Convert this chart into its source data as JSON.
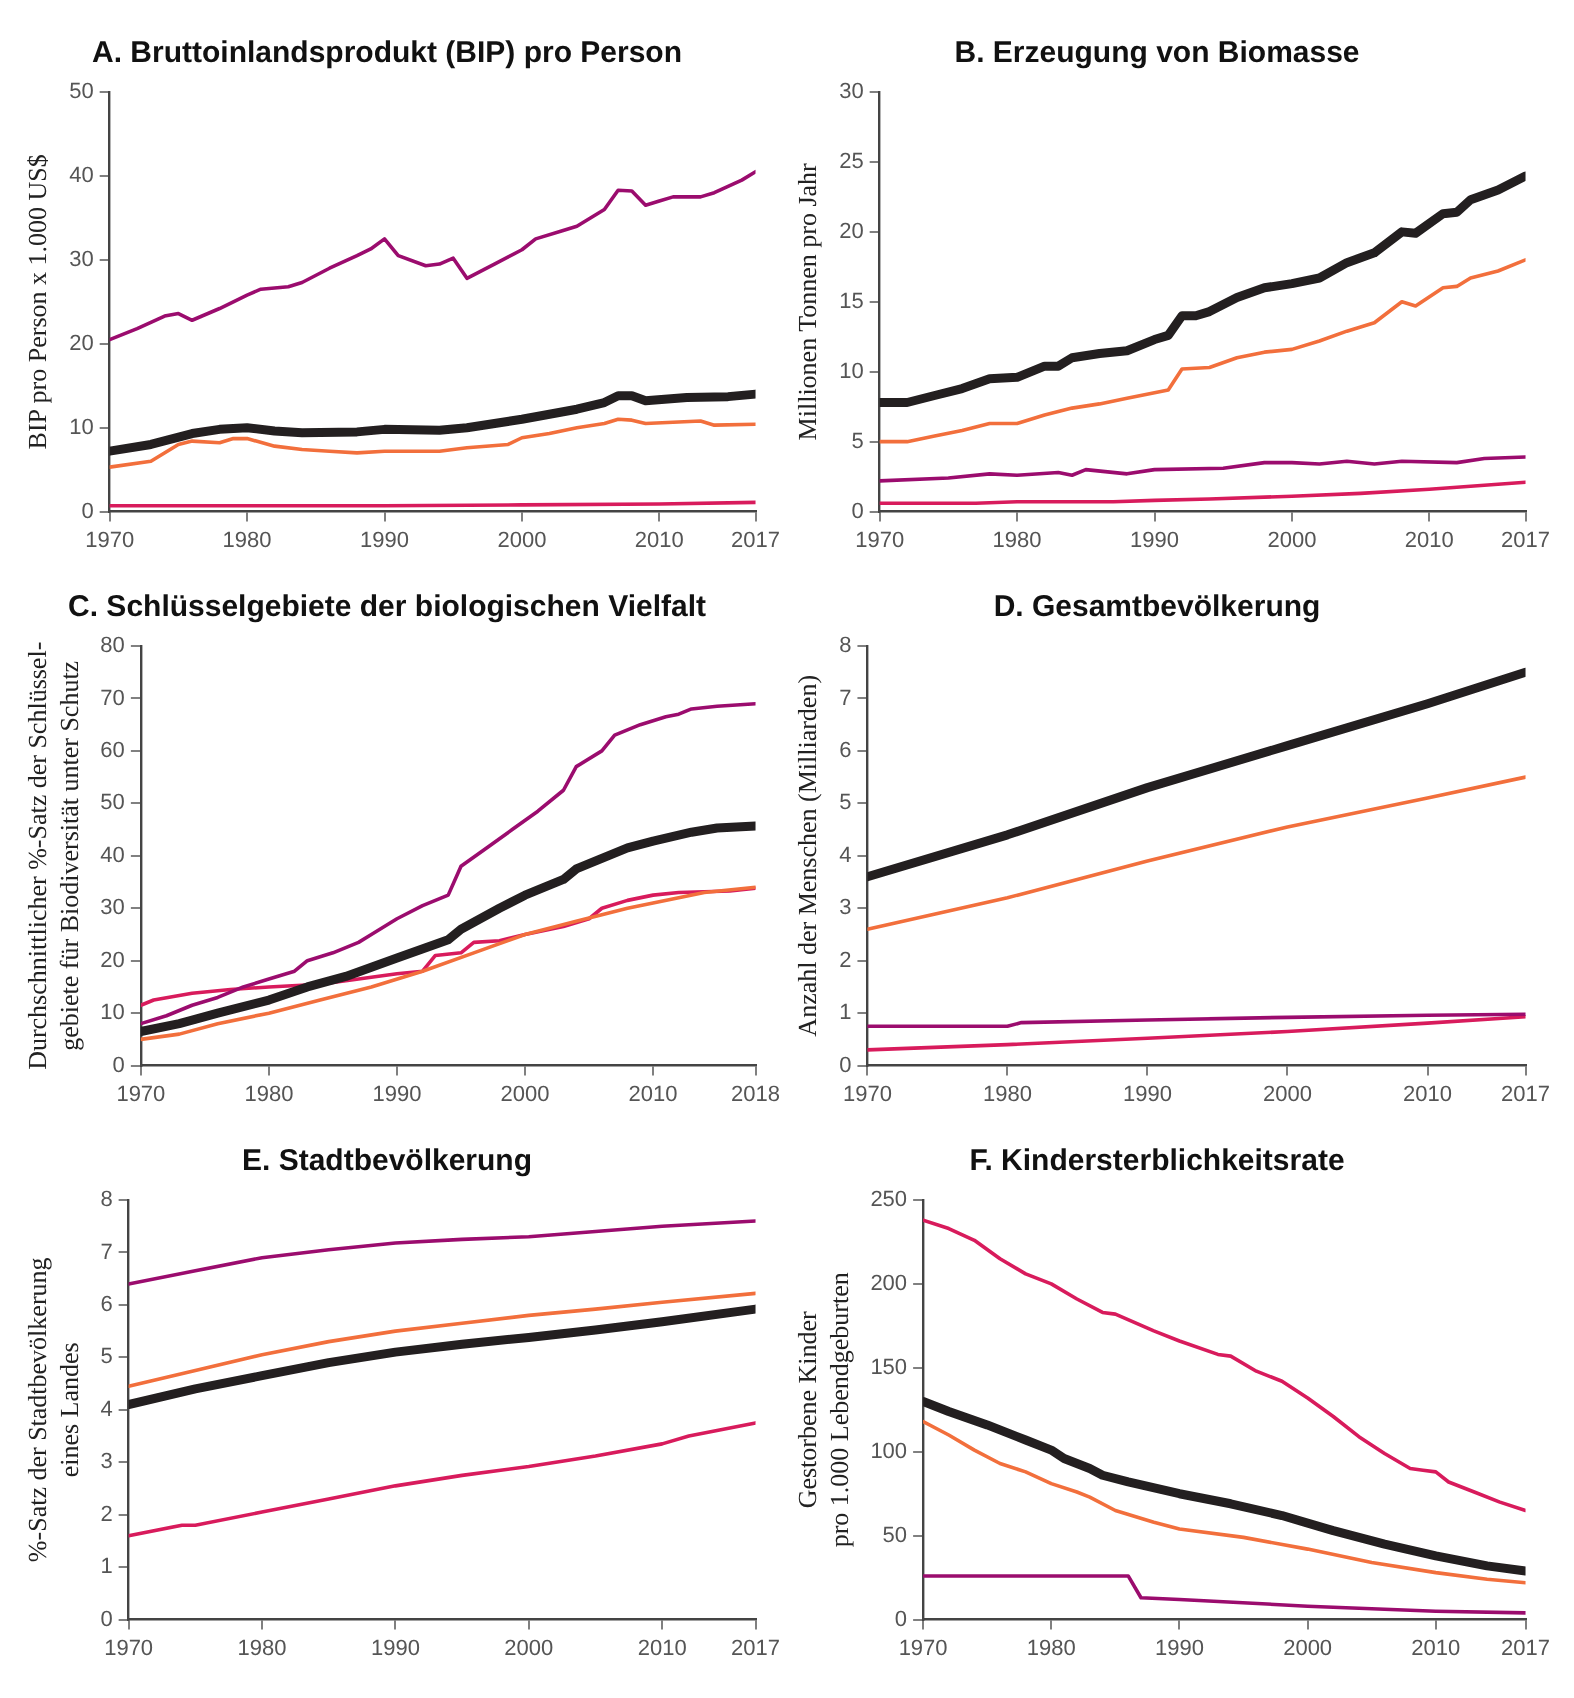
{
  "chart_data": [
    {
      "type": "line",
      "title": "A. Bruttoinlandsprodukt (BIP) pro Person",
      "ylabel": "BIP pro Person x 1.000 US$",
      "xlim": [
        1970,
        2017
      ],
      "xticks": [
        1970,
        1980,
        1990,
        2000,
        2010,
        2017
      ],
      "ylim": [
        0,
        50
      ],
      "yticks": [
        0,
        10,
        20,
        30,
        40,
        50
      ],
      "grid": false,
      "legend": false,
      "marker": "none",
      "line_style": "solid",
      "series": [
        {
          "color": "#231f20",
          "x": [
            1970,
            1973,
            1976,
            1978,
            1980,
            1982,
            1984,
            1988,
            1990,
            1994,
            1996,
            2000,
            2002,
            2004,
            2006,
            2007,
            2008,
            2009,
            2012,
            2015,
            2017
          ],
          "values": [
            7.2,
            8,
            9.3,
            9.8,
            10,
            9.6,
            9.4,
            9.5,
            9.8,
            9.7,
            10,
            11,
            11.6,
            12.2,
            13,
            13.8,
            13.8,
            13.2,
            13.6,
            13.7,
            14
          ]
        },
        {
          "color": "#f26f3c",
          "x": [
            1970,
            1973,
            1975,
            1976,
            1978,
            1979,
            1980,
            1982,
            1984,
            1986,
            1988,
            1990,
            1994,
            1996,
            1999,
            2000,
            2002,
            2004,
            2006,
            2007,
            2008,
            2009,
            2013,
            2014,
            2017
          ],
          "values": [
            5.3,
            6,
            8,
            8.4,
            8.2,
            8.7,
            8.7,
            7.8,
            7.4,
            7.2,
            7,
            7.2,
            7.2,
            7.6,
            8,
            8.8,
            9.3,
            10,
            10.5,
            11,
            10.9,
            10.5,
            10.8,
            10.3,
            10.4
          ]
        },
        {
          "color": "#9b0c6e",
          "x": [
            1970,
            1972,
            1974,
            1975,
            1976,
            1978,
            1980,
            1981,
            1983,
            1984,
            1986,
            1988,
            1989,
            1990,
            1991,
            1993,
            1994,
            1995,
            1996,
            1998,
            2000,
            2001,
            2003,
            2004,
            2006,
            2007,
            2008,
            2009,
            2010,
            2011,
            2013,
            2014,
            2016,
            2017
          ],
          "values": [
            20.5,
            21.8,
            23.3,
            23.6,
            22.8,
            24.2,
            25.8,
            26.5,
            26.8,
            27.3,
            29,
            30.5,
            31.3,
            32.5,
            30.5,
            29.3,
            29.5,
            30.2,
            27.8,
            29.5,
            31.2,
            32.5,
            33.5,
            34,
            36,
            38.3,
            38.2,
            36.5,
            37,
            37.5,
            37.5,
            38,
            39.5,
            40.5
          ]
        },
        {
          "color": "#d81b5c",
          "x": [
            1970,
            1980,
            1990,
            2000,
            2010,
            2017
          ],
          "values": [
            0.7,
            0.7,
            0.7,
            0.8,
            0.9,
            1.1
          ]
        }
      ]
    },
    {
      "type": "line",
      "title": "B. Erzeugung von Biomasse",
      "ylabel": "Millionen Tonnen pro Jahr",
      "xlim": [
        1970,
        2017
      ],
      "xticks": [
        1970,
        1980,
        1990,
        2000,
        2010,
        2017
      ],
      "ylim": [
        0,
        30
      ],
      "yticks": [
        0,
        5,
        10,
        15,
        20,
        25,
        30
      ],
      "grid": false,
      "legend": false,
      "marker": "none",
      "line_style": "solid",
      "series": [
        {
          "color": "#231f20",
          "x": [
            1970,
            1972,
            1974,
            1976,
            1978,
            1980,
            1982,
            1983,
            1984,
            1986,
            1988,
            1990,
            1991,
            1992,
            1993,
            1994,
            1996,
            1998,
            2000,
            2002,
            2004,
            2006,
            2008,
            2009,
            2011,
            2012,
            2013,
            2015,
            2017
          ],
          "values": [
            7.8,
            7.8,
            8.3,
            8.8,
            9.5,
            9.6,
            10.4,
            10.4,
            11,
            11.3,
            11.5,
            12.3,
            12.6,
            14,
            14,
            14.3,
            15.3,
            16,
            16.3,
            16.7,
            17.8,
            18.5,
            20,
            19.9,
            21.3,
            21.4,
            22.3,
            23,
            24
          ]
        },
        {
          "color": "#f26f3c",
          "x": [
            1970,
            1972,
            1974,
            1976,
            1978,
            1980,
            1982,
            1984,
            1986,
            1988,
            1990,
            1991,
            1992,
            1994,
            1996,
            1998,
            2000,
            2002,
            2004,
            2006,
            2008,
            2009,
            2011,
            2012,
            2013,
            2015,
            2017
          ],
          "values": [
            5,
            5,
            5.4,
            5.8,
            6.3,
            6.3,
            6.9,
            7.4,
            7.7,
            8.1,
            8.5,
            8.7,
            10.2,
            10.3,
            11,
            11.4,
            11.6,
            12.2,
            12.9,
            13.5,
            15,
            14.7,
            16,
            16.1,
            16.7,
            17.2,
            18
          ]
        },
        {
          "color": "#9b0c6e",
          "x": [
            1970,
            1975,
            1978,
            1980,
            1983,
            1984,
            1985,
            1988,
            1990,
            1995,
            1998,
            2000,
            2002,
            2004,
            2006,
            2008,
            2012,
            2014,
            2017
          ],
          "values": [
            2.2,
            2.4,
            2.7,
            2.6,
            2.8,
            2.6,
            3,
            2.7,
            3,
            3.1,
            3.5,
            3.5,
            3.4,
            3.6,
            3.4,
            3.6,
            3.5,
            3.8,
            3.9
          ]
        },
        {
          "color": "#d81b5c",
          "x": [
            1970,
            1977,
            1980,
            1987,
            1990,
            1994,
            2000,
            2005,
            2010,
            2017
          ],
          "values": [
            0.6,
            0.6,
            0.7,
            0.7,
            0.8,
            0.9,
            1.1,
            1.3,
            1.6,
            2.1
          ]
        }
      ]
    },
    {
      "type": "line",
      "title": "C. Schlüsselgebiete der biologischen Vielfalt",
      "ylabel": "Durchschnittlicher %-Satz der Schlüssel-\ngebiete für Biodiversität unter Schutz",
      "xlim": [
        1970,
        2018
      ],
      "xticks": [
        1970,
        1980,
        1990,
        2000,
        2010,
        2018
      ],
      "ylim": [
        0,
        80
      ],
      "yticks": [
        0,
        10,
        20,
        30,
        40,
        50,
        60,
        70,
        80
      ],
      "grid": false,
      "legend": false,
      "marker": "none",
      "line_style": "solid",
      "series": [
        {
          "color": "#231f20",
          "x": [
            1970,
            1973,
            1976,
            1980,
            1983,
            1986,
            1990,
            1994,
            1995,
            1998,
            2000,
            2003,
            2004,
            2006,
            2008,
            2010,
            2013,
            2015,
            2018
          ],
          "values": [
            6.5,
            8,
            10,
            12.5,
            15,
            17,
            20.5,
            24,
            26,
            30,
            32.5,
            35.5,
            37.5,
            39.5,
            41.5,
            42.8,
            44.5,
            45.3,
            45.7
          ]
        },
        {
          "color": "#f26f3c",
          "x": [
            1970,
            1973,
            1976,
            1980,
            1984,
            1988,
            1992,
            1996,
            2000,
            2004,
            2008,
            2010,
            2014,
            2018
          ],
          "values": [
            5,
            6,
            8,
            10,
            12.5,
            15,
            18,
            21.5,
            25,
            27.5,
            30,
            31,
            33,
            34
          ]
        },
        {
          "color": "#9b0c6e",
          "x": [
            1970,
            1972,
            1974,
            1976,
            1978,
            1980,
            1982,
            1983,
            1985,
            1987,
            1988,
            1990,
            1992,
            1994,
            1995,
            1997,
            1999,
            2001,
            2003,
            2004,
            2006,
            2007,
            2009,
            2011,
            2012,
            2013,
            2015,
            2018
          ],
          "values": [
            8,
            9.5,
            11.5,
            13,
            15,
            16.5,
            18,
            20,
            21.5,
            23.5,
            25,
            28,
            30.5,
            32.5,
            38,
            41.5,
            45,
            48.5,
            52.5,
            57,
            60,
            63,
            65,
            66.5,
            67,
            68,
            68.5,
            69
          ]
        },
        {
          "color": "#d81b5c",
          "x": [
            1970,
            1971,
            1974,
            1977,
            1980,
            1984,
            1987,
            1990,
            1992,
            1993,
            1995,
            1996,
            1998,
            2000,
            2003,
            2005,
            2006,
            2008,
            2010,
            2012,
            2016,
            2018
          ],
          "values": [
            11.5,
            12.5,
            13.8,
            14.5,
            15,
            15.5,
            16.5,
            17.5,
            18,
            21,
            21.5,
            23.5,
            23.8,
            25,
            26.5,
            28,
            30,
            31.5,
            32.5,
            33,
            33.3,
            33.8
          ]
        }
      ]
    },
    {
      "type": "line",
      "title": "D. Gesamtbevölkerung",
      "ylabel": "Anzahl der Menschen (Milliarden)",
      "xlim": [
        1970,
        2017
      ],
      "xticks": [
        1970,
        1980,
        1990,
        2000,
        2010,
        2017
      ],
      "ylim": [
        0,
        8
      ],
      "yticks": [
        0,
        1,
        2,
        3,
        4,
        5,
        6,
        7,
        8
      ],
      "grid": false,
      "legend": false,
      "marker": "none",
      "line_style": "solid",
      "series": [
        {
          "color": "#231f20",
          "x": [
            1970,
            1980,
            1990,
            2000,
            2010,
            2017
          ],
          "values": [
            3.6,
            4.4,
            5.3,
            6.1,
            6.9,
            7.5
          ]
        },
        {
          "color": "#f26f3c",
          "x": [
            1970,
            1980,
            1990,
            2000,
            2010,
            2017
          ],
          "values": [
            2.6,
            3.2,
            3.9,
            4.55,
            5.1,
            5.5
          ]
        },
        {
          "color": "#9b0c6e",
          "x": [
            1970,
            1980,
            1981,
            1990,
            2000,
            2010,
            2017
          ],
          "values": [
            0.75,
            0.75,
            0.82,
            0.87,
            0.92,
            0.96,
            0.98
          ]
        },
        {
          "color": "#d81b5c",
          "x": [
            1970,
            1980,
            1990,
            2000,
            2010,
            2017
          ],
          "values": [
            0.3,
            0.4,
            0.52,
            0.65,
            0.81,
            0.93
          ]
        }
      ]
    },
    {
      "type": "line",
      "title": "E. Stadtbevölkerung",
      "ylabel": "%-Satz der Stadtbevölkerung\neines Landes",
      "xlim": [
        1970,
        2017
      ],
      "xticks": [
        1970,
        1980,
        1990,
        2000,
        2010,
        2017
      ],
      "ylim": [
        0,
        8
      ],
      "yticks": [
        0,
        1,
        2,
        3,
        4,
        5,
        6,
        7,
        8
      ],
      "grid": false,
      "legend": false,
      "marker": "none",
      "line_style": "solid",
      "series": [
        {
          "color": "#231f20",
          "x": [
            1970,
            1975,
            1980,
            1985,
            1990,
            1995,
            2000,
            2005,
            2010,
            2017
          ],
          "values": [
            4.1,
            4.4,
            4.65,
            4.9,
            5.1,
            5.25,
            5.38,
            5.52,
            5.68,
            5.92
          ]
        },
        {
          "color": "#f26f3c",
          "x": [
            1970,
            1975,
            1980,
            1985,
            1990,
            1995,
            2000,
            2005,
            2010,
            2017
          ],
          "values": [
            4.45,
            4.75,
            5.05,
            5.3,
            5.5,
            5.65,
            5.8,
            5.92,
            6.05,
            6.22
          ]
        },
        {
          "color": "#9b0c6e",
          "x": [
            1970,
            1975,
            1980,
            1985,
            1990,
            1995,
            2000,
            2005,
            2010,
            2017
          ],
          "values": [
            6.4,
            6.65,
            6.9,
            7.05,
            7.18,
            7.25,
            7.3,
            7.4,
            7.5,
            7.6
          ]
        },
        {
          "color": "#d81b5c",
          "x": [
            1970,
            1974,
            1975,
            1980,
            1985,
            1990,
            1995,
            2000,
            2005,
            2010,
            2012,
            2017
          ],
          "values": [
            1.6,
            1.8,
            1.8,
            2.05,
            2.3,
            2.55,
            2.75,
            2.92,
            3.12,
            3.35,
            3.5,
            3.75
          ]
        }
      ]
    },
    {
      "type": "line",
      "title": "F. Kindersterblichkeitsrate",
      "ylabel": "Gestorbene Kinder\npro 1.000 Lebendgeburten",
      "xlim": [
        1970,
        2017
      ],
      "xticks": [
        1970,
        1980,
        1990,
        2000,
        2010,
        2017
      ],
      "ylim": [
        0,
        250
      ],
      "yticks": [
        0,
        50,
        100,
        150,
        200,
        250
      ],
      "grid": false,
      "legend": false,
      "marker": "none",
      "line_style": "solid",
      "series": [
        {
          "color": "#231f20",
          "x": [
            1970,
            1972,
            1975,
            1978,
            1980,
            1981,
            1983,
            1984,
            1986,
            1990,
            1994,
            1998,
            2002,
            2006,
            2010,
            2014,
            2017
          ],
          "values": [
            130,
            124,
            116,
            107,
            101,
            96,
            90,
            86,
            82,
            75,
            69,
            62,
            53,
            45,
            38,
            32,
            29
          ]
        },
        {
          "color": "#f26f3c",
          "x": [
            1970,
            1972,
            1974,
            1976,
            1978,
            1980,
            1982,
            1983,
            1985,
            1988,
            1990,
            1995,
            2000,
            2005,
            2010,
            2014,
            2017
          ],
          "values": [
            118,
            110,
            101,
            93,
            88,
            81,
            76,
            73,
            65,
            58,
            54,
            49,
            42,
            34,
            28,
            24,
            22
          ]
        },
        {
          "color": "#9b0c6e",
          "x": [
            1970,
            1986,
            1987,
            1990,
            2000,
            2010,
            2017
          ],
          "values": [
            26,
            26,
            13,
            12,
            8,
            5,
            4
          ]
        },
        {
          "color": "#d81b5c",
          "x": [
            1970,
            1972,
            1974,
            1976,
            1978,
            1980,
            1982,
            1984,
            1985,
            1988,
            1990,
            1993,
            1994,
            1996,
            1998,
            2000,
            2002,
            2004,
            2006,
            2008,
            2009,
            2010,
            2011,
            2013,
            2015,
            2017
          ],
          "values": [
            238,
            233,
            226,
            215,
            206,
            200,
            191,
            183,
            182,
            172,
            166,
            158,
            157,
            148,
            142,
            132,
            121,
            109,
            99,
            90,
            89,
            88,
            82,
            76,
            70,
            65
          ]
        }
      ]
    }
  ]
}
